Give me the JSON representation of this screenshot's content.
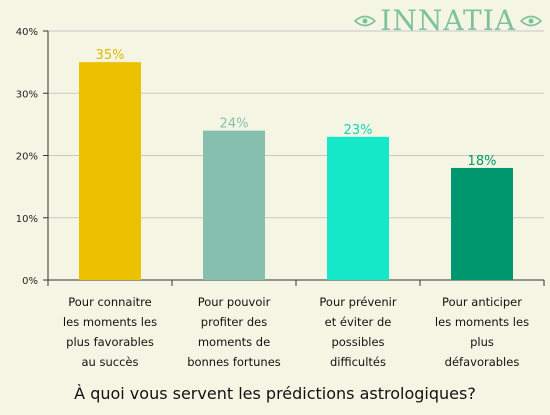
{
  "logo": {
    "text": "INNATIA",
    "color": "#7ec29a"
  },
  "chart_data": {
    "type": "bar",
    "title": "À quoi vous servent les prédictions astrologiques?",
    "categories": [
      [
        "Pour connaitre",
        "les moments les",
        "plus favorables",
        "au succès"
      ],
      [
        "Pour pouvoir",
        "profiter des",
        "moments de",
        "bonnes fortunes"
      ],
      [
        "Pour prévenir",
        "et éviter de",
        "possibles",
        "difficultés"
      ],
      [
        "Pour anticiper",
        "les moments les",
        "plus",
        "défavorables"
      ]
    ],
    "values": [
      35,
      24,
      23,
      18
    ],
    "data_labels": [
      "35%",
      "24%",
      "23%",
      "18%"
    ],
    "bar_colors": [
      "#ecc200",
      "#86bfae",
      "#14e8c8",
      "#00976e"
    ],
    "label_colors": [
      "#e0b800",
      "#86bfae",
      "#14d4b8",
      "#00976e"
    ],
    "yticks": [
      "0%",
      "10%",
      "20%",
      "30%",
      "40%"
    ],
    "ytick_values": [
      0,
      10,
      20,
      30,
      40
    ],
    "ylim": [
      0,
      40
    ],
    "grid": true
  }
}
